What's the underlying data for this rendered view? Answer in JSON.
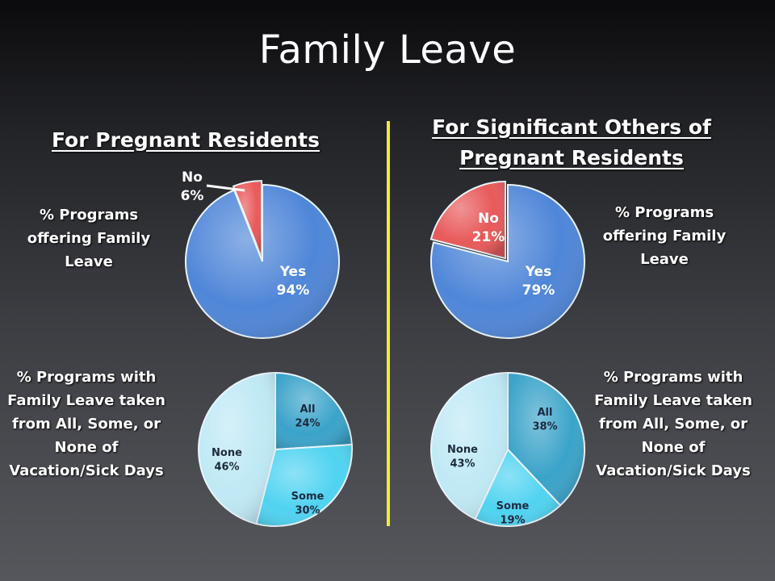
{
  "title": "Family Leave",
  "headings": {
    "left": "For Pregnant Residents",
    "right_line1": "For Significant Others of",
    "right_line2": "Pregnant Residents"
  },
  "labels": {
    "offering_left": [
      "% Programs",
      "offering Family",
      "Leave"
    ],
    "offering_right": [
      "% Programs",
      "offering Family",
      "Leave"
    ],
    "taken_left": [
      "% Programs with",
      "Family Leave taken",
      "from All, Some, or",
      "None of",
      "Vacation/Sick Days"
    ],
    "taken_right": [
      "% Programs with",
      "Family Leave taken",
      "from All, Some, or",
      "None of",
      "Vacation/Sick Days"
    ]
  },
  "colors": {
    "yes": "#4f86d8",
    "no": "#e8595a",
    "all": "#3aa3c9",
    "some": "#4fd3f1",
    "none": "#bfe9f5",
    "divider": "#f2e93a"
  },
  "chart_data": [
    {
      "type": "pie",
      "slices": [
        {
          "label": "Yes",
          "value": 94,
          "text": "94%",
          "color": "#4f86d8"
        },
        {
          "label": "No",
          "value": 6,
          "text": "6%",
          "color": "#e8595a"
        }
      ]
    },
    {
      "type": "pie",
      "slices": [
        {
          "label": "Yes",
          "value": 79,
          "text": "79%",
          "color": "#4f86d8"
        },
        {
          "label": "No",
          "value": 21,
          "text": "21%",
          "color": "#e8595a"
        }
      ]
    },
    {
      "type": "pie",
      "slices": [
        {
          "label": "All",
          "value": 24,
          "text": "24%",
          "color": "#3aa3c9"
        },
        {
          "label": "Some",
          "value": 30,
          "text": "30%",
          "color": "#4fd3f1"
        },
        {
          "label": "None",
          "value": 46,
          "text": "46%",
          "color": "#bfe9f5"
        }
      ]
    },
    {
      "type": "pie",
      "slices": [
        {
          "label": "All",
          "value": 38,
          "text": "38%",
          "color": "#3aa3c9"
        },
        {
          "label": "Some",
          "value": 19,
          "text": "19%",
          "color": "#4fd3f1"
        },
        {
          "label": "None",
          "value": 43,
          "text": "43%",
          "color": "#bfe9f5"
        }
      ]
    }
  ]
}
